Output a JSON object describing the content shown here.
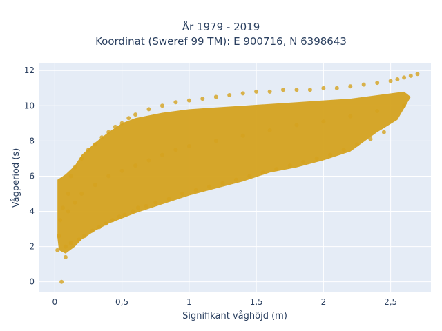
{
  "chart_data": {
    "type": "scatter",
    "title": "År 1979 - 2019",
    "subtitle": "Koordinat (Sweref 99 TM): E 900716, N 6398643",
    "xlabel": "Signifikant våghöjd (m)",
    "ylabel": "Vågperiod (s)",
    "xlim": [
      -0.12,
      2.8
    ],
    "ylim": [
      -0.6,
      12.4
    ],
    "x_ticks": [
      0,
      0.5,
      1,
      1.5,
      2,
      2.5
    ],
    "x_tick_labels": [
      "0",
      "0,5",
      "1",
      "1,5",
      "2",
      "2,5"
    ],
    "y_ticks": [
      0,
      2,
      4,
      6,
      8,
      10,
      12
    ],
    "y_tick_labels": [
      "0",
      "2",
      "4",
      "6",
      "8",
      "10",
      "12"
    ],
    "grid": true,
    "marker_color": "#d4a21f",
    "plot_background": "#e5ecf6",
    "series": [
      {
        "x": [
          0.05,
          0.02,
          0.03,
          0.04,
          0.06,
          0.08,
          0.1,
          0.12,
          0.15,
          0.2,
          0.25,
          0.3,
          0.35,
          0.4,
          0.45,
          0.5,
          0.55,
          0.6,
          0.7,
          0.8,
          0.9,
          1.0,
          1.1,
          1.2,
          1.3,
          1.4,
          1.5,
          1.6,
          1.7,
          1.8,
          1.9,
          2.0,
          2.1,
          2.2,
          2.3,
          2.4,
          2.5,
          2.55,
          2.6,
          2.65,
          2.7,
          0.08,
          0.12,
          0.18,
          0.22,
          0.28,
          0.33,
          0.38,
          0.43,
          0.48,
          0.52,
          0.58,
          0.62,
          0.68,
          0.75,
          0.85,
          0.95,
          1.05,
          1.15,
          1.25,
          1.35,
          1.45,
          1.55,
          1.65,
          1.75,
          1.85,
          1.95,
          2.05,
          2.15,
          2.25,
          2.35,
          2.45,
          0.1,
          0.15,
          0.2,
          0.3,
          0.4,
          0.5,
          0.6,
          0.7,
          0.8,
          0.9,
          1.0,
          1.2,
          1.4,
          1.6,
          1.8,
          2.0,
          2.2,
          2.4,
          2.6
        ],
        "y": [
          0.0,
          1.8,
          2.6,
          3.5,
          4.2,
          1.4,
          5.0,
          6.0,
          6.5,
          7.0,
          7.5,
          7.8,
          8.2,
          8.5,
          8.8,
          9.0,
          9.3,
          9.5,
          9.8,
          10.0,
          10.2,
          10.3,
          10.4,
          10.5,
          10.6,
          10.7,
          10.8,
          10.8,
          10.9,
          10.9,
          10.9,
          11.0,
          11.0,
          11.1,
          11.2,
          11.3,
          11.4,
          11.5,
          11.6,
          11.7,
          11.8,
          2.0,
          2.2,
          2.4,
          2.6,
          2.9,
          3.1,
          3.3,
          3.5,
          3.7,
          3.8,
          4.0,
          4.2,
          4.3,
          4.5,
          4.7,
          5.0,
          5.2,
          5.4,
          5.6,
          5.8,
          6.0,
          6.2,
          6.4,
          6.6,
          6.8,
          7.0,
          7.2,
          7.5,
          7.8,
          8.1,
          8.5,
          4.0,
          4.5,
          5.0,
          5.5,
          6.0,
          6.3,
          6.6,
          6.9,
          7.2,
          7.5,
          7.7,
          8.0,
          8.3,
          8.6,
          8.9,
          9.1,
          9.4,
          9.7,
          10.0
        ]
      }
    ]
  }
}
